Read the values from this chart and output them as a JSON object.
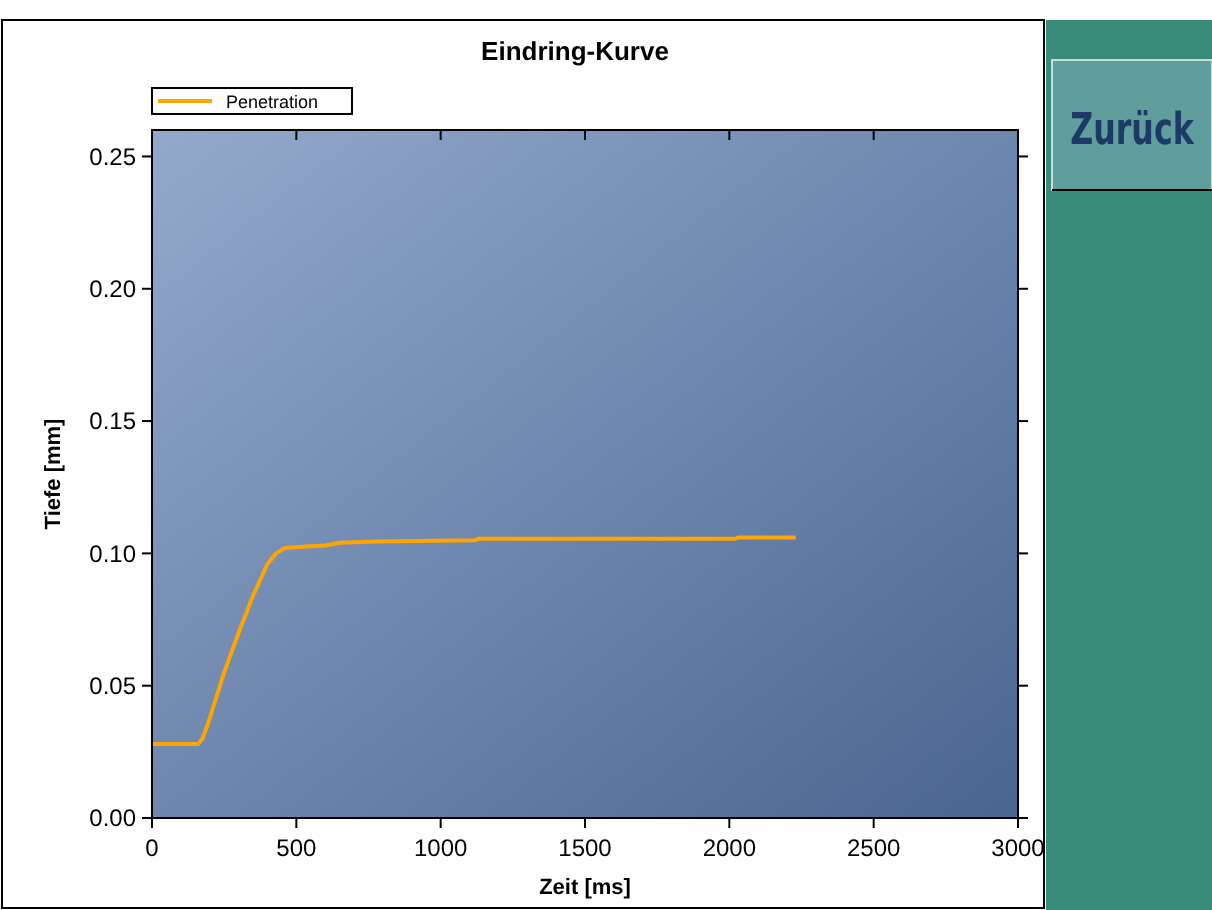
{
  "chart_data": {
    "type": "line",
    "title": "Eindring-Kurve",
    "xlabel": "Zeit [ms]",
    "ylabel": "Tiefe [mm]",
    "x": [
      0,
      160,
      175,
      195,
      250,
      300,
      350,
      400,
      430,
      460,
      520,
      600,
      650,
      780,
      1120,
      1130,
      2020,
      2030,
      2230
    ],
    "series": [
      {
        "name": "Penetration",
        "color": "#ffa500",
        "values": [
          0.028,
          0.028,
          0.03,
          0.036,
          0.055,
          0.07,
          0.084,
          0.096,
          0.1,
          0.102,
          0.1025,
          0.103,
          0.104,
          0.1045,
          0.105,
          0.1055,
          0.1055,
          0.106,
          0.106
        ]
      }
    ],
    "xlim": [
      0,
      3000
    ],
    "xticks": [
      0,
      500,
      1000,
      1500,
      2000,
      2500,
      3000
    ],
    "ylim": [
      0,
      0.26
    ],
    "yticks": [
      {
        "value": 0,
        "label": "0.00"
      },
      {
        "value": 0.05,
        "label": "0.05"
      },
      {
        "value": 0.1,
        "label": "0.10"
      },
      {
        "value": 0.15,
        "label": "0.15"
      },
      {
        "value": 0.2,
        "label": "0.20"
      },
      {
        "value": 0.25,
        "label": "0.25"
      }
    ],
    "legend": "top left",
    "grid": false,
    "marker": "none",
    "line_style": "solid",
    "annotations": [
      "Zurück"
    ]
  }
}
